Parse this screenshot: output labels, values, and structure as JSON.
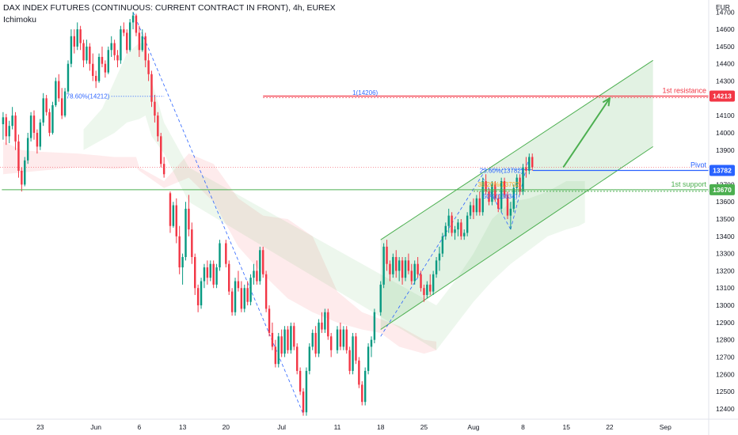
{
  "header": {
    "title": "DAX INDEX FUTURES (CONTINUOUS: CURRENT CONTRACT IN FRONT), 4h, EUREX",
    "indicator": "Ichimoku"
  },
  "chart_data": {
    "type": "candlestick",
    "currency": "EUR",
    "y_ticks": [
      14700,
      14600,
      14500,
      14400,
      14300,
      14200,
      14100,
      14000,
      13900,
      13800,
      13700,
      13600,
      13500,
      13400,
      13300,
      13200,
      13100,
      13000,
      12900,
      12800,
      12700,
      12600,
      12500,
      12400
    ],
    "ylim": [
      12340,
      14770
    ],
    "x_ticks": [
      "23",
      "Jun",
      "6",
      "13",
      "20",
      "Jul",
      "11",
      "18",
      "25",
      "Aug",
      "8",
      "15",
      "22",
      "Sep"
    ],
    "x_tick_days": [
      0,
      9,
      16,
      23,
      30,
      39,
      48,
      55,
      62,
      70,
      78,
      85,
      92,
      101
    ],
    "xlim_days": [
      -6.5,
      108
    ],
    "candles": [
      [
        -6.0,
        14050,
        14120,
        13960,
        14090
      ],
      [
        -5.5,
        14090,
        14110,
        13930,
        13980
      ],
      [
        -5.0,
        13980,
        14070,
        13940,
        14040
      ],
      [
        -4.5,
        14040,
        14150,
        14020,
        14100
      ],
      [
        -4.0,
        14100,
        14120,
        13900,
        13950
      ],
      [
        -3.5,
        13950,
        13990,
        13740,
        13780
      ],
      [
        -3.0,
        13780,
        13800,
        13660,
        13700
      ],
      [
        -2.5,
        13700,
        13860,
        13690,
        13840
      ],
      [
        -2.0,
        13840,
        14000,
        13820,
        13970
      ],
      [
        -1.5,
        13970,
        14120,
        13950,
        14100
      ],
      [
        -1.0,
        14100,
        14130,
        13960,
        14000
      ],
      [
        -0.5,
        14000,
        14020,
        13880,
        13920
      ],
      [
        0.0,
        13920,
        14080,
        13900,
        14060
      ],
      [
        0.5,
        14060,
        14230,
        14040,
        14200
      ],
      [
        1.0,
        14200,
        14220,
        14100,
        14120
      ],
      [
        1.5,
        14120,
        14140,
        13980,
        14000
      ],
      [
        2.0,
        14000,
        14180,
        13990,
        14160
      ],
      [
        2.5,
        14160,
        14320,
        14150,
        14300
      ],
      [
        3.0,
        14300,
        14340,
        14180,
        14200
      ],
      [
        3.5,
        14200,
        14260,
        14080,
        14100
      ],
      [
        4.0,
        14100,
        14260,
        14090,
        14240
      ],
      [
        4.5,
        14240,
        14420,
        14230,
        14400
      ],
      [
        5.0,
        14400,
        14600,
        14380,
        14560
      ],
      [
        5.5,
        14560,
        14600,
        14460,
        14500
      ],
      [
        6.0,
        14500,
        14640,
        14480,
        14600
      ],
      [
        6.5,
        14600,
        14620,
        14480,
        14520
      ],
      [
        7.0,
        14520,
        14540,
        14380,
        14420
      ],
      [
        7.5,
        14420,
        14540,
        14400,
        14500
      ],
      [
        8.0,
        14500,
        14520,
        14360,
        14400
      ],
      [
        8.5,
        14400,
        14460,
        14300,
        14330
      ],
      [
        9.0,
        14330,
        14360,
        14260,
        14300
      ],
      [
        9.5,
        14300,
        14460,
        14290,
        14440
      ],
      [
        10.0,
        14440,
        14500,
        14380,
        14400
      ],
      [
        10.5,
        14400,
        14420,
        14320,
        14350
      ],
      [
        11.0,
        14350,
        14500,
        14340,
        14480
      ],
      [
        11.5,
        14480,
        14560,
        14440,
        14520
      ],
      [
        12.0,
        14520,
        14540,
        14420,
        14450
      ],
      [
        12.5,
        14450,
        14480,
        14380,
        14420
      ],
      [
        13.0,
        14420,
        14620,
        14400,
        14600
      ],
      [
        13.5,
        14600,
        14640,
        14560,
        14580
      ],
      [
        14.0,
        14580,
        14600,
        14460,
        14480
      ],
      [
        14.5,
        14480,
        14660,
        14470,
        14640
      ],
      [
        15.0,
        14640,
        14700,
        14600,
        14680
      ],
      [
        15.5,
        14680,
        14690,
        14560,
        14580
      ],
      [
        16.0,
        14580,
        14620,
        14440,
        14480
      ],
      [
        16.5,
        14480,
        14600,
        14470,
        14560
      ],
      [
        17.0,
        14560,
        14580,
        14380,
        14420
      ],
      [
        17.5,
        14420,
        14460,
        14300,
        14340
      ],
      [
        18.0,
        14340,
        14360,
        14150,
        14180
      ],
      [
        18.5,
        14180,
        14220,
        14060,
        14100
      ],
      [
        19.0,
        14100,
        14120,
        13950,
        13980
      ],
      [
        19.5,
        13980,
        14000,
        13800,
        13820
      ],
      [
        20.0,
        13820,
        13860,
        13740,
        13760
      ],
      [
        21.0,
        13650,
        13660,
        13420,
        13460
      ],
      [
        21.5,
        13460,
        13600,
        13450,
        13580
      ],
      [
        22.0,
        13580,
        13620,
        13360,
        13400
      ],
      [
        22.5,
        13400,
        13460,
        13180,
        13220
      ],
      [
        23.0,
        13220,
        13300,
        13120,
        13280
      ],
      [
        23.5,
        13280,
        13600,
        13260,
        13560
      ],
      [
        24.0,
        13560,
        13640,
        13400,
        13440
      ],
      [
        24.5,
        13440,
        13480,
        13240,
        13280
      ],
      [
        25.0,
        13280,
        13300,
        13060,
        13100
      ],
      [
        25.5,
        13100,
        13120,
        12960,
        13000
      ],
      [
        26.0,
        13000,
        13160,
        12980,
        13140
      ],
      [
        26.5,
        13140,
        13240,
        13100,
        13220
      ],
      [
        27.0,
        13220,
        13260,
        13120,
        13160
      ],
      [
        27.5,
        13160,
        13260,
        13140,
        13240
      ],
      [
        28.0,
        13240,
        13260,
        13100,
        13120
      ],
      [
        28.5,
        13120,
        13240,
        13100,
        13220
      ],
      [
        29.0,
        13220,
        13380,
        13200,
        13360
      ],
      [
        30.0,
        13360,
        13380,
        13220,
        13240
      ],
      [
        30.5,
        13240,
        13260,
        13060,
        13080
      ],
      [
        31.0,
        13080,
        13100,
        12940,
        12960
      ],
      [
        31.5,
        12960,
        13160,
        12940,
        13140
      ],
      [
        32.0,
        13140,
        13200,
        13080,
        13100
      ],
      [
        32.5,
        13100,
        13140,
        12960,
        12980
      ],
      [
        33.0,
        12980,
        13120,
        12960,
        13100
      ],
      [
        33.5,
        13100,
        13140,
        13000,
        13020
      ],
      [
        34.0,
        13020,
        13180,
        13000,
        13160
      ],
      [
        34.5,
        13160,
        13240,
        13120,
        13200
      ],
      [
        35.0,
        13200,
        13260,
        13120,
        13140
      ],
      [
        35.5,
        13140,
        13340,
        13120,
        13320
      ],
      [
        36.0,
        13320,
        13340,
        13160,
        13180
      ],
      [
        36.5,
        13180,
        13200,
        12960,
        12980
      ],
      [
        37.0,
        12980,
        13000,
        12820,
        12840
      ],
      [
        37.5,
        12840,
        12900,
        12740,
        12760
      ],
      [
        38.0,
        12760,
        12800,
        12640,
        12660
      ],
      [
        38.5,
        12660,
        12840,
        12640,
        12820
      ],
      [
        39.0,
        12820,
        12860,
        12700,
        12720
      ],
      [
        39.5,
        12720,
        12880,
        12700,
        12860
      ],
      [
        40.0,
        12860,
        12880,
        12720,
        12740
      ],
      [
        40.5,
        12740,
        12900,
        12720,
        12880
      ],
      [
        41.0,
        12880,
        12900,
        12740,
        12760
      ],
      [
        41.5,
        12760,
        12780,
        12600,
        12620
      ],
      [
        42.0,
        12620,
        12640,
        12480,
        12500
      ],
      [
        42.5,
        12500,
        12520,
        12360,
        12380
      ],
      [
        43.0,
        12380,
        12640,
        12360,
        12620
      ],
      [
        43.5,
        12620,
        12780,
        12600,
        12760
      ],
      [
        44.0,
        12760,
        12860,
        12740,
        12840
      ],
      [
        44.5,
        12840,
        12880,
        12700,
        12720
      ],
      [
        45.0,
        12720,
        12920,
        12700,
        12900
      ],
      [
        45.5,
        12900,
        12960,
        12840,
        12860
      ],
      [
        46.0,
        12860,
        12980,
        12840,
        12960
      ],
      [
        46.5,
        12960,
        12980,
        12800,
        12820
      ],
      [
        47.0,
        12820,
        12840,
        12700,
        12740
      ],
      [
        48.0,
        12740,
        12880,
        12720,
        12860
      ],
      [
        48.5,
        12860,
        12900,
        12740,
        12760
      ],
      [
        49.0,
        12760,
        12880,
        12740,
        12860
      ],
      [
        49.5,
        12860,
        12880,
        12720,
        12740
      ],
      [
        50.0,
        12740,
        12760,
        12600,
        12620
      ],
      [
        50.5,
        12620,
        12840,
        12600,
        12820
      ],
      [
        51.0,
        12820,
        12840,
        12660,
        12680
      ],
      [
        51.5,
        12680,
        12700,
        12520,
        12540
      ],
      [
        52.0,
        12540,
        12560,
        12420,
        12440
      ],
      [
        52.5,
        12440,
        12640,
        12420,
        12620
      ],
      [
        53.0,
        12620,
        12780,
        12600,
        12760
      ],
      [
        53.5,
        12760,
        12820,
        12700,
        12800
      ],
      [
        54.0,
        12800,
        12980,
        12780,
        12960
      ],
      [
        55.0,
        12960,
        13140,
        12940,
        13120
      ],
      [
        55.5,
        13120,
        13360,
        13100,
        13340
      ],
      [
        56.0,
        13340,
        13380,
        13200,
        13240
      ],
      [
        56.5,
        13240,
        13260,
        13140,
        13180
      ],
      [
        57.0,
        13180,
        13300,
        13160,
        13280
      ],
      [
        57.5,
        13280,
        13320,
        13160,
        13200
      ],
      [
        58.0,
        13200,
        13280,
        13140,
        13260
      ],
      [
        58.5,
        13260,
        13280,
        13120,
        13160
      ],
      [
        59.0,
        13160,
        13280,
        13140,
        13260
      ],
      [
        59.5,
        13260,
        13300,
        13180,
        13200
      ],
      [
        60.0,
        13200,
        13240,
        13120,
        13140
      ],
      [
        60.5,
        13140,
        13260,
        13120,
        13240
      ],
      [
        61.0,
        13240,
        13280,
        13160,
        13180
      ],
      [
        61.5,
        13180,
        13200,
        13080,
        13100
      ],
      [
        62.0,
        13100,
        13120,
        13020,
        13060
      ],
      [
        62.5,
        13060,
        13140,
        13040,
        13120
      ],
      [
        63.0,
        13120,
        13180,
        13060,
        13080
      ],
      [
        63.5,
        13080,
        13200,
        13060,
        13180
      ],
      [
        64.0,
        13180,
        13280,
        13160,
        13260
      ],
      [
        64.5,
        13260,
        13340,
        13200,
        13300
      ],
      [
        65.0,
        13300,
        13420,
        13280,
        13400
      ],
      [
        65.5,
        13400,
        13480,
        13380,
        13460
      ],
      [
        66.0,
        13460,
        13560,
        13420,
        13520
      ],
      [
        66.5,
        13520,
        13540,
        13400,
        13420
      ],
      [
        67.0,
        13420,
        13460,
        13380,
        13440
      ],
      [
        67.5,
        13440,
        13500,
        13400,
        13480
      ],
      [
        68.0,
        13480,
        13500,
        13380,
        13400
      ],
      [
        68.5,
        13400,
        13440,
        13380,
        13420
      ],
      [
        69.0,
        13420,
        13540,
        13400,
        13520
      ],
      [
        69.5,
        13520,
        13600,
        13500,
        13580
      ],
      [
        70.0,
        13580,
        13620,
        13500,
        13540
      ],
      [
        70.5,
        13540,
        13640,
        13520,
        13620
      ],
      [
        71.0,
        13620,
        13660,
        13520,
        13540
      ],
      [
        71.5,
        13540,
        13740,
        13520,
        13720
      ],
      [
        72.0,
        13720,
        13760,
        13640,
        13660
      ],
      [
        72.5,
        13660,
        13680,
        13580,
        13600
      ],
      [
        73.0,
        13600,
        13720,
        13580,
        13700
      ],
      [
        73.5,
        13700,
        13720,
        13600,
        13620
      ],
      [
        74.0,
        13620,
        13640,
        13540,
        13560
      ],
      [
        74.5,
        13560,
        13740,
        13540,
        13720
      ],
      [
        75.0,
        13720,
        13740,
        13620,
        13640
      ],
      [
        75.5,
        13640,
        13660,
        13500,
        13520
      ],
      [
        76.0,
        13520,
        13600,
        13440,
        13560
      ],
      [
        76.5,
        13560,
        13700,
        13540,
        13680
      ],
      [
        77.0,
        13680,
        13760,
        13640,
        13740
      ],
      [
        77.5,
        13740,
        13760,
        13640,
        13660
      ],
      [
        78.0,
        13660,
        13820,
        13640,
        13800
      ],
      [
        78.5,
        13800,
        13860,
        13740,
        13780
      ],
      [
        79.0,
        13780,
        13880,
        13760,
        13860
      ],
      [
        79.5,
        13860,
        13880,
        13780,
        13800
      ]
    ],
    "channel": {
      "upper": [
        [
          55.0,
          13380
        ],
        [
          99.0,
          14420
        ]
      ],
      "lower": [
        [
          55.0,
          12860
        ],
        [
          99.0,
          13920
        ]
      ]
    },
    "cloud_red": [
      [
        -6.0,
        13950,
        13760
      ],
      [
        -3.0,
        13900,
        13770
      ],
      [
        0,
        13890,
        13780
      ],
      [
        6,
        13880,
        13800
      ],
      [
        12,
        13860,
        13790
      ],
      [
        15.5,
        13860,
        13800
      ],
      [
        16,
        13800,
        13780
      ],
      [
        20,
        13720,
        13680
      ],
      [
        24,
        13880,
        13740
      ],
      [
        28,
        13820,
        13600
      ],
      [
        32,
        13620,
        13340
      ],
      [
        36,
        13520,
        13180
      ],
      [
        40,
        13500,
        13040
      ],
      [
        44,
        13400,
        12960
      ],
      [
        48,
        13080,
        12900
      ],
      [
        52,
        12960,
        12860
      ],
      [
        55,
        12920,
        12840
      ],
      [
        58,
        12880,
        12760
      ],
      [
        60,
        12840,
        12740
      ],
      [
        62,
        12800,
        12720
      ],
      [
        64,
        12790,
        12740
      ]
    ],
    "cloud_green": [
      [
        7,
        14020,
        13900
      ],
      [
        10,
        14140,
        13960
      ],
      [
        12,
        14300,
        14000
      ],
      [
        14,
        14460,
        14060
      ],
      [
        16,
        14520,
        14080
      ],
      [
        17,
        14520,
        14100
      ],
      [
        18,
        14300,
        13980
      ],
      [
        20,
        14060,
        13880
      ],
      [
        24,
        13800,
        13600
      ],
      [
        64,
        13000,
        12740
      ],
      [
        67,
        13140,
        12880
      ],
      [
        70,
        13300,
        13020
      ],
      [
        73,
        13500,
        13140
      ],
      [
        76,
        13600,
        13240
      ],
      [
        79,
        13620,
        13320
      ],
      [
        82,
        13660,
        13400
      ],
      [
        85,
        13720,
        13440
      ],
      [
        87,
        13720,
        13460
      ],
      [
        88,
        13720,
        13480
      ]
    ],
    "hlines": [
      {
        "price": 14213,
        "color": "#f23645",
        "label": "1st resistance",
        "tag": "14213"
      },
      {
        "price": 13782,
        "color": "#2962ff",
        "label": "Pivot",
        "tag": "13782"
      },
      {
        "price": 13670,
        "color": "#4caf50",
        "label": "1st support",
        "tag": "13670"
      }
    ],
    "fib_levels": [
      {
        "text": "78.60%(14212)",
        "price": 14212,
        "color": "#2962ff"
      },
      {
        "text": "1(14206)",
        "price": 14206,
        "color": "#2962ff"
      },
      {
        "text": "23.60%(13782)",
        "price": 13782,
        "color": "#2962ff"
      },
      {
        "text": "38.20%(13702)",
        "price": 13702,
        "color": "#f7a21b"
      },
      {
        "text": "50%(13634)",
        "price": 13634,
        "color": "#2962ff"
      }
    ],
    "last_price": 13800,
    "dotted_level": 13800
  }
}
